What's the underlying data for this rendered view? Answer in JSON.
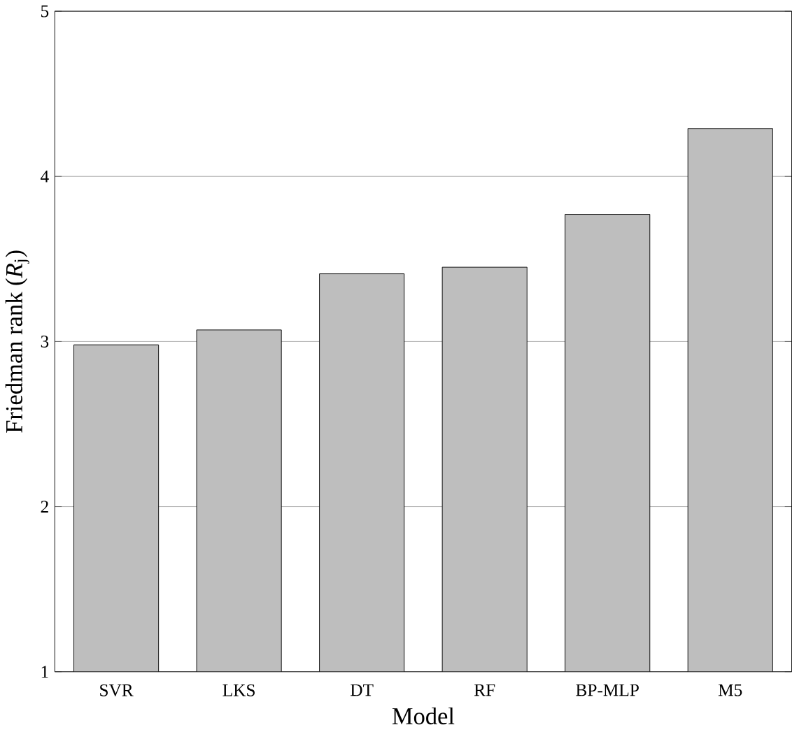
{
  "chart_data": {
    "type": "bar",
    "xlabel": "Model",
    "ylabel": "Friedman rank (*R*$_{j}$)",
    "categories": [
      "SVR",
      "LKS",
      "DT",
      "RF",
      "BP-MLP",
      "M5"
    ],
    "values": [
      2.98,
      3.07,
      3.41,
      3.45,
      3.77,
      4.29
    ],
    "color": "#bebebe",
    "ylim": [
      1,
      5
    ],
    "yticks": [
      1,
      2,
      3,
      4,
      5
    ],
    "grid": "y"
  }
}
